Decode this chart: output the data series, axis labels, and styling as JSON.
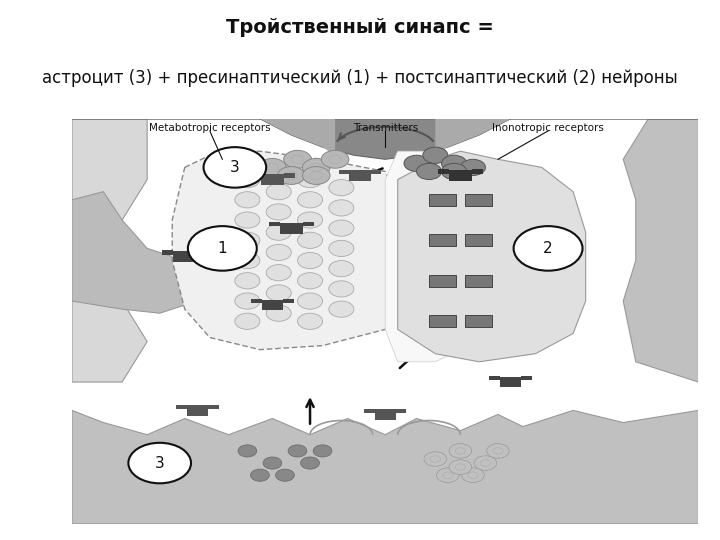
{
  "title_line1": "Тройственный синапс =",
  "title_line2": "астроцит (3) + пресинаптический (1) + постсинаптический (2) нейроны",
  "title_fontsize": 14,
  "subtitle_fontsize": 12,
  "background_color": "#ffffff",
  "label_metabotropic": "Metabotropic receptors",
  "label_transmitters": "Transmitters",
  "label_ionotropic": "Inonotropic receptors",
  "diagram_border_color": "#cccccc",
  "color_dark_grey": "#888888",
  "color_mid_grey": "#aaaaaa",
  "color_light_grey": "#cccccc",
  "color_very_light": "#e8e8e8",
  "color_stipple": "#d0d0d0",
  "color_white": "#ffffff",
  "color_black": "#111111"
}
